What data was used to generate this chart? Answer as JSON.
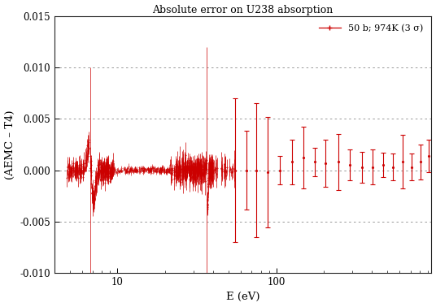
{
  "title": "Absolute error on U238 absorption",
  "xlabel": "E (eV)",
  "ylabel": "(AEMC – T4)",
  "legend_label": "50 b; 974K (3 σ)",
  "xlim_left": 4.0,
  "xlim_right": 950,
  "ylim": [
    -0.01,
    0.015
  ],
  "yticks": [
    -0.01,
    -0.005,
    0.0,
    0.005,
    0.01,
    0.015
  ],
  "color": "#cc0000",
  "bg_color": "#ffffff",
  "grid_color": "#888888",
  "sparse_energies": [
    55,
    65,
    75,
    88,
    105,
    125,
    148,
    175,
    205,
    245,
    290,
    345,
    405,
    470,
    545,
    625,
    715,
    815,
    910
  ],
  "sparse_y": [
    0.0,
    0.0,
    0.0,
    -0.0002,
    0.0,
    0.0008,
    0.0012,
    0.0008,
    0.0007,
    0.0008,
    0.0005,
    0.0003,
    0.0003,
    0.0005,
    0.0003,
    0.0008,
    0.0003,
    0.0008,
    0.0014
  ],
  "sparse_err": [
    0.007,
    0.0038,
    0.0065,
    0.0054,
    0.0014,
    0.0022,
    0.003,
    0.0014,
    0.0023,
    0.0027,
    0.0015,
    0.0015,
    0.0017,
    0.0012,
    0.0013,
    0.0026,
    0.0013,
    0.0017,
    0.0016
  ],
  "seed": 7
}
